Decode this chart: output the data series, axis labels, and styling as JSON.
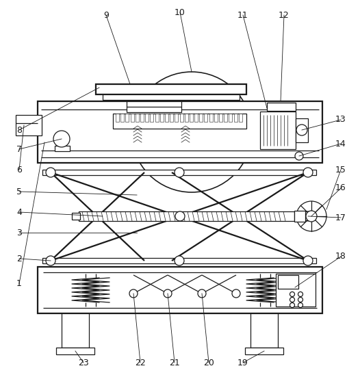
{
  "figsize": [
    5.26,
    5.51
  ],
  "dpi": 100,
  "bg_color": "#ffffff",
  "line_color": "#1a1a1a",
  "lw": 0.9
}
